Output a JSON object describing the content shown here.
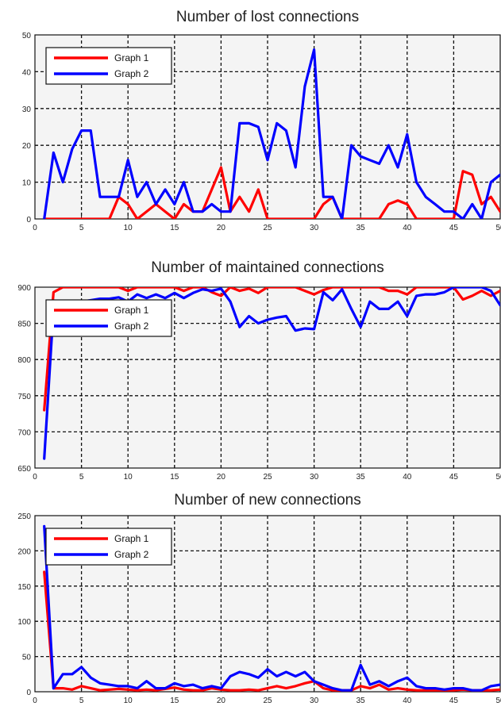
{
  "chart_data": [
    {
      "type": "line",
      "title": "Number of lost connections",
      "xlabel": "",
      "ylabel": "",
      "xlim": [
        0,
        50
      ],
      "ylim": [
        0,
        50
      ],
      "xticks": [
        0,
        5,
        10,
        15,
        20,
        25,
        30,
        35,
        40,
        45,
        50
      ],
      "yticks": [
        0,
        10,
        20,
        30,
        40,
        50
      ],
      "xtick_labels": [
        "0",
        "5",
        "10",
        "15",
        "20",
        "25",
        "30",
        "35",
        "40",
        "45",
        "50"
      ],
      "ytick_labels": [
        "0",
        "10",
        "20",
        "30",
        "40",
        "50"
      ],
      "grid": true,
      "legend_position": "top-left",
      "x": [
        1,
        2,
        3,
        4,
        5,
        6,
        7,
        8,
        9,
        10,
        11,
        12,
        13,
        14,
        15,
        16,
        17,
        18,
        19,
        20,
        21,
        22,
        23,
        24,
        25,
        26,
        27,
        28,
        29,
        30,
        31,
        32,
        33,
        34,
        35,
        36,
        37,
        38,
        39,
        40,
        41,
        42,
        43,
        44,
        45,
        46,
        47,
        48,
        49,
        50
      ],
      "series": [
        {
          "name": "Graph 1",
          "color": "#ff0000",
          "values": [
            0,
            0,
            0,
            0,
            0,
            0,
            0,
            0,
            6,
            4,
            0,
            2,
            4,
            2,
            0,
            4,
            2,
            2,
            8,
            14,
            2,
            6,
            2,
            8,
            0,
            0,
            0,
            0,
            0,
            0,
            4,
            6,
            0,
            0,
            0,
            0,
            0,
            4,
            5,
            4,
            0,
            0,
            0,
            0,
            0,
            13,
            12,
            4,
            6,
            2
          ]
        },
        {
          "name": "Graph 2",
          "color": "#0000ff",
          "values": [
            0,
            18,
            10,
            19,
            24,
            24,
            6,
            6,
            6,
            16,
            6,
            10,
            4,
            8,
            4,
            10,
            2,
            2,
            4,
            2,
            2,
            26,
            26,
            25,
            16,
            26,
            24,
            14,
            36,
            46,
            6,
            6,
            0,
            20,
            17,
            16,
            15,
            20,
            14,
            23,
            10,
            6,
            4,
            2,
            2,
            0,
            4,
            0,
            10,
            12
          ]
        }
      ]
    },
    {
      "type": "line",
      "title": "Number of maintained connections",
      "xlabel": "",
      "ylabel": "",
      "xlim": [
        0,
        50
      ],
      "ylim": [
        650,
        900
      ],
      "xticks": [
        0,
        5,
        10,
        15,
        20,
        25,
        30,
        35,
        40,
        45,
        50
      ],
      "yticks": [
        650,
        700,
        750,
        800,
        850,
        900
      ],
      "xtick_labels": [
        "0",
        "5",
        "10",
        "15",
        "20",
        "25",
        "30",
        "35",
        "40",
        "45",
        "50"
      ],
      "ytick_labels": [
        "650",
        "700",
        "750",
        "800",
        "850",
        "900"
      ],
      "grid": true,
      "legend_position": "top-left",
      "x": [
        1,
        2,
        3,
        4,
        5,
        6,
        7,
        8,
        9,
        10,
        11,
        12,
        13,
        14,
        15,
        16,
        17,
        18,
        19,
        20,
        21,
        22,
        23,
        24,
        25,
        26,
        27,
        28,
        29,
        30,
        31,
        32,
        33,
        34,
        35,
        36,
        37,
        38,
        39,
        40,
        41,
        42,
        43,
        44,
        45,
        46,
        47,
        48,
        49,
        50
      ],
      "series": [
        {
          "name": "Graph 1",
          "color": "#ff0000",
          "values": [
            730,
            893,
            900,
            900,
            900,
            900,
            900,
            900,
            900,
            895,
            900,
            900,
            900,
            900,
            900,
            895,
            900,
            900,
            893,
            888,
            900,
            895,
            898,
            892,
            900,
            900,
            900,
            900,
            895,
            890,
            896,
            900,
            900,
            900,
            900,
            900,
            900,
            895,
            895,
            890,
            900,
            900,
            900,
            900,
            900,
            883,
            888,
            895,
            888,
            895
          ]
        },
        {
          "name": "Graph 2",
          "color": "#0000ff",
          "values": [
            663,
            870,
            875,
            878,
            880,
            882,
            884,
            884,
            886,
            880,
            890,
            885,
            890,
            885,
            892,
            885,
            892,
            897,
            895,
            898,
            880,
            845,
            860,
            850,
            855,
            858,
            860,
            840,
            843,
            842,
            893,
            882,
            897,
            870,
            845,
            880,
            870,
            870,
            880,
            860,
            888,
            890,
            890,
            893,
            900,
            900,
            900,
            900,
            895,
            875
          ]
        }
      ]
    },
    {
      "type": "line",
      "title": "Number of new connections",
      "xlabel": "",
      "ylabel": "",
      "xlim": [
        0,
        50
      ],
      "ylim": [
        0,
        250
      ],
      "xticks": [
        0,
        5,
        10,
        15,
        20,
        25,
        30,
        35,
        40,
        45,
        50
      ],
      "yticks": [
        0,
        50,
        100,
        150,
        200,
        250
      ],
      "xtick_labels": [
        "0",
        "5",
        "10",
        "15",
        "20",
        "25",
        "30",
        "35",
        "40",
        "45",
        "50"
      ],
      "ytick_labels": [
        "0",
        "50",
        "100",
        "150",
        "200",
        "250"
      ],
      "grid": true,
      "legend_position": "top-left",
      "x": [
        1,
        2,
        3,
        4,
        5,
        6,
        7,
        8,
        9,
        10,
        11,
        12,
        13,
        14,
        15,
        16,
        17,
        18,
        19,
        20,
        21,
        22,
        23,
        24,
        25,
        26,
        27,
        28,
        29,
        30,
        31,
        32,
        33,
        34,
        35,
        36,
        37,
        38,
        39,
        40,
        41,
        42,
        43,
        44,
        45,
        46,
        47,
        48,
        49,
        50
      ],
      "series": [
        {
          "name": "Graph 1",
          "color": "#ff0000",
          "values": [
            170,
            5,
            5,
            3,
            8,
            5,
            2,
            3,
            4,
            3,
            2,
            3,
            2,
            4,
            6,
            3,
            2,
            2,
            5,
            3,
            2,
            2,
            3,
            2,
            5,
            8,
            5,
            8,
            12,
            15,
            5,
            2,
            2,
            2,
            8,
            5,
            10,
            3,
            5,
            3,
            2,
            2,
            2,
            2,
            2,
            3,
            2,
            2,
            2,
            3
          ]
        },
        {
          "name": "Graph 2",
          "color": "#0000ff",
          "values": [
            235,
            5,
            25,
            25,
            35,
            20,
            12,
            10,
            8,
            8,
            5,
            15,
            5,
            5,
            12,
            8,
            10,
            5,
            8,
            5,
            22,
            28,
            25,
            20,
            32,
            22,
            28,
            22,
            28,
            15,
            10,
            5,
            2,
            2,
            38,
            10,
            15,
            8,
            15,
            20,
            8,
            5,
            5,
            3,
            5,
            5,
            2,
            2,
            8,
            10
          ]
        }
      ]
    }
  ]
}
